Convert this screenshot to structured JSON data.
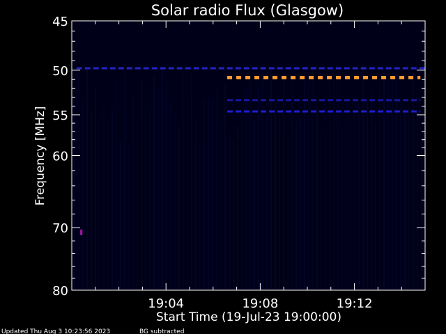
{
  "chart_data": {
    "type": "heatmap",
    "title": "Solar radio Flux (Glasgow)",
    "xlabel": "Start Time (19-Jul-23 19:00:00)",
    "ylabel": "Frequency [MHz]",
    "x_ticks": [
      "19:04",
      "19:08",
      "19:12"
    ],
    "x_tick_minutes": [
      4,
      8,
      12
    ],
    "x_range_minutes": [
      0,
      15
    ],
    "y_ticks": [
      45,
      50,
      55,
      60,
      70,
      80
    ],
    "ylim": [
      45,
      80
    ],
    "y_scale": "log",
    "y_inverted": true,
    "background_color": "#000000",
    "plot_fill": "#000018",
    "features": [
      {
        "name": "emission-band-50mhz",
        "freq": 49.8,
        "t_start": 0.2,
        "t_end": 15.0,
        "color": "#2424c8",
        "style": "dashed"
      },
      {
        "name": "emission-band-51mhz",
        "freq": 50.8,
        "t_start": 6.6,
        "t_end": 14.8,
        "color": "#ff9a30",
        "style": "dashed"
      },
      {
        "name": "emission-band-53mhz",
        "freq": 53.3,
        "t_start": 6.6,
        "t_end": 14.8,
        "color": "#1818a0",
        "style": "dashed"
      },
      {
        "name": "emission-band-54mhz",
        "freq": 54.6,
        "t_start": 6.6,
        "t_end": 14.8,
        "color": "#1e1ed0",
        "style": "dashed"
      },
      {
        "name": "emission-spot-70mhz",
        "freq": 70.7,
        "t_start": 0.35,
        "t_end": 0.45,
        "color": "#a0109a",
        "style": "solid"
      }
    ]
  },
  "footer": {
    "updated": "Updated Thu Aug  3 10:23:56 2023",
    "note": "BG subtracted"
  }
}
